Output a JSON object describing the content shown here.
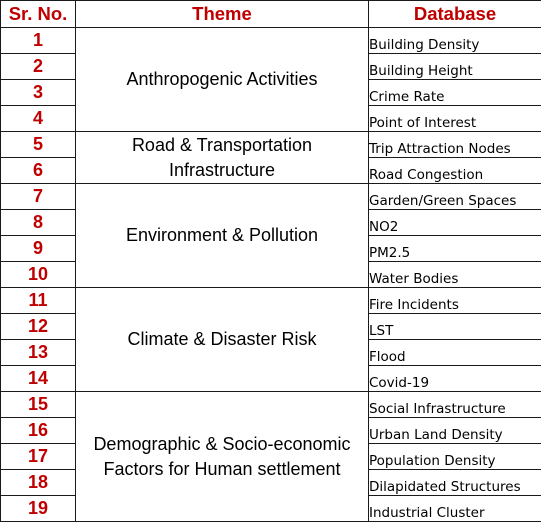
{
  "headers": {
    "sr_no": "Sr. No.",
    "theme": "Theme",
    "database": "Database"
  },
  "rows": [
    {
      "sr": "1",
      "database": "Building Density"
    },
    {
      "sr": "2",
      "database": "Building Height"
    },
    {
      "sr": "3",
      "database": "Crime Rate"
    },
    {
      "sr": "4",
      "database": "Point of Interest"
    },
    {
      "sr": "5",
      "database": "Trip Attraction Nodes"
    },
    {
      "sr": "6",
      "database": "Road Congestion"
    },
    {
      "sr": "7",
      "database": "Garden/Green Spaces"
    },
    {
      "sr": "8",
      "database": "NO2"
    },
    {
      "sr": "9",
      "database": "PM2.5"
    },
    {
      "sr": "10",
      "database": "Water Bodies"
    },
    {
      "sr": "11",
      "database": "Fire Incidents"
    },
    {
      "sr": "12",
      "database": "LST"
    },
    {
      "sr": "13",
      "database": "Flood"
    },
    {
      "sr": "14",
      "database": "Covid-19"
    },
    {
      "sr": "15",
      "database": "Social Infrastructure"
    },
    {
      "sr": "16",
      "database": "Urban Land Density"
    },
    {
      "sr": "17",
      "database": "Population Density"
    },
    {
      "sr": "18",
      "database": "Dilapidated Structures"
    },
    {
      "sr": "19",
      "database": "Industrial Cluster"
    }
  ],
  "themes": [
    {
      "lines": [
        "Anthropogenic Activities"
      ]
    },
    {
      "lines": [
        "Road & Transportation",
        "Infrastructure"
      ]
    },
    {
      "lines": [
        "Environment & Pollution"
      ]
    },
    {
      "lines": [
        "Climate & Disaster Risk"
      ]
    },
    {
      "lines": [
        "Demographic & Socio-economic",
        "Factors for Human settlement"
      ]
    }
  ],
  "colors": {
    "header_text": "#c00000",
    "serial_text": "#c00000",
    "border": "#1a1a1a",
    "body_text": "#000000"
  }
}
